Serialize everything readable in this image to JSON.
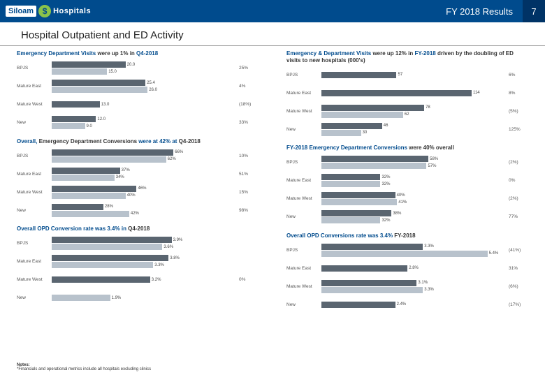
{
  "header": {
    "logo_left": "Siloam",
    "logo_right": "Hospitals",
    "title": "FY 2018 Results",
    "page_number": "7"
  },
  "page_title": "Hospital Outpatient and ED Activity",
  "colors": {
    "dark": "#5a6570",
    "light": "#b8c2cc",
    "bg": "#ffffff"
  },
  "charts": {
    "tl": {
      "title_parts": [
        "Emergency Department Visits",
        " were up 1% in ",
        "Q4-2018"
      ],
      "max": 50,
      "rows": [
        {
          "label": "BPJS",
          "a": 20.0,
          "b": 15.0,
          "av": "20.0",
          "bv": "15.0",
          "pct": "25%"
        },
        {
          "label": "Mature East",
          "a": 25.4,
          "b": 26.0,
          "av": "25.4",
          "bv": "26.0",
          "pct": "4%"
        },
        {
          "label": "Mature West",
          "a": 13.0,
          "b": null,
          "av": "13.0",
          "bv": "",
          "pct": "(18%)"
        },
        {
          "label": "New",
          "a": 12.0,
          "b": 9.0,
          "av": "12.0",
          "bv": "9.0",
          "pct": "33%"
        }
      ]
    },
    "tr": {
      "title_parts": [
        "Emergency & Department Visits",
        " were up 12% in ",
        "FY-2018",
        " driven by the doubling of ED visits to new hospitals",
        " (000's)"
      ],
      "max": 140,
      "rows": [
        {
          "label": "BPJS",
          "a": 57,
          "b": null,
          "av": "57",
          "bv": "",
          "pct": "6%"
        },
        {
          "label": "Mature East",
          "a": 114,
          "b": null,
          "av": "114",
          "bv": "",
          "pct": "8%"
        },
        {
          "label": "Mature West",
          "a": 78,
          "b": 62,
          "av": "78",
          "bv": "62",
          "pct": "(5%)"
        },
        {
          "label": "New",
          "a": 46,
          "b": 30,
          "av": "46",
          "bv": "30",
          "pct": "125%"
        }
      ]
    },
    "ml": {
      "title_parts": [
        "Overall, ",
        "Emergency Department Conversions",
        " were at 42% at ",
        "Q4-2018"
      ],
      "max": 100,
      "rows": [
        {
          "label": "BPJS",
          "a": 66,
          "b": 62,
          "av": "66%",
          "bv": "62%",
          "pct": "10%"
        },
        {
          "label": "Mature East",
          "a": 37,
          "b": 34,
          "av": "37%",
          "bv": "34%",
          "pct": "51%"
        },
        {
          "label": "Mature West",
          "a": 46,
          "b": 40,
          "av": "46%",
          "bv": "40%",
          "pct": "15%"
        },
        {
          "label": "New",
          "a": 28,
          "b": 42,
          "av": "28%",
          "bv": "42%",
          "pct": "98%"
        }
      ]
    },
    "mr": {
      "title_parts": [
        "FY-2018 Emergency Department Conversions",
        " were 40% overall"
      ],
      "max": 100,
      "rows": [
        {
          "label": "BPJS",
          "a": 58,
          "b": 57,
          "av": "58%",
          "bv": "57%",
          "pct": "(2%)"
        },
        {
          "label": "Mature East",
          "a": 32,
          "b": 32,
          "av": "32%",
          "bv": "32%",
          "pct": "0%"
        },
        {
          "label": "Mature West",
          "a": 40,
          "b": 41,
          "av": "40%",
          "bv": "41%",
          "pct": "(2%)"
        },
        {
          "label": "New",
          "a": 38,
          "b": 32,
          "av": "38%",
          "bv": "32%",
          "pct": "77%"
        }
      ]
    },
    "bl": {
      "title_parts": [
        "Overall OPD Conversion rate was 3.4% in ",
        "Q4-2018"
      ],
      "max": 6,
      "rows": [
        {
          "label": "BPJS",
          "a": 3.9,
          "b": 3.6,
          "av": "3.9%",
          "bv": "3.6%",
          "pct": ""
        },
        {
          "label": "Mature East",
          "a": 3.8,
          "b": 3.3,
          "av": "3.8%",
          "bv": "3.3%",
          "pct": ""
        },
        {
          "label": "Mature West",
          "a": 3.2,
          "b": null,
          "av": "3.2%",
          "bv": "",
          "pct": "0%"
        },
        {
          "label": "New",
          "a": null,
          "b": 1.9,
          "av": "",
          "bv": "1.9%",
          "pct": ""
        }
      ]
    },
    "br": {
      "title_parts": [
        "Overall OPD Conversions rate was 3.4% ",
        "FY-2018"
      ],
      "max": 6,
      "rows": [
        {
          "label": "BPJS",
          "a": 3.3,
          "b": 5.4,
          "av": "3.3%",
          "bv": "5.4%",
          "pct": "(41%)"
        },
        {
          "label": "Mature East",
          "a": 2.8,
          "b": null,
          "av": "2.8%",
          "bv": "",
          "pct": "31%"
        },
        {
          "label": "Mature West",
          "a": 3.1,
          "b": 3.3,
          "av": "3.1%",
          "bv": "3.3%",
          "pct": "(6%)"
        },
        {
          "label": "New",
          "a": 2.4,
          "b": null,
          "av": "2.4%",
          "bv": "",
          "pct": "(17%)"
        }
      ]
    }
  },
  "notes": {
    "title": "Notes:",
    "text": "*Financials and operational metrics include all hospitals excluding clinics"
  }
}
